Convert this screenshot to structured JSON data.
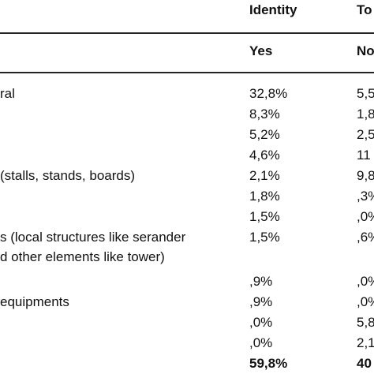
{
  "header": {
    "group1": "Identity",
    "group2": "To",
    "sub1": "Yes",
    "sub2": "No"
  },
  "rows": [
    {
      "label": "ral",
      "yes": "32,8%",
      "no": "5,5"
    },
    {
      "label": "",
      "yes": "8,3%",
      "no": "1,8"
    },
    {
      "label": "",
      "yes": "5,2%",
      "no": "2,5"
    },
    {
      "label": "",
      "yes": "4,6%",
      "no": "11"
    },
    {
      "label": "(stalls, stands, boards)",
      "yes": "2,1%",
      "no": "9,8"
    },
    {
      "label": "",
      "yes": "1,8%",
      "no": ",3%"
    },
    {
      "label": "",
      "yes": "1,5%",
      "no": ",0%"
    },
    {
      "label": "s (local structures like serander",
      "label2": "d other elements like tower)",
      "yes": "1,5%",
      "no": ",6%"
    },
    {
      "label": "",
      "yes": ",9%",
      "no": ",0%"
    },
    {
      "label": "equipments",
      "yes": ",9%",
      "no": ",0%"
    },
    {
      "label": "",
      "yes": ",0%",
      "no": "5,8"
    },
    {
      "label": "",
      "yes": ",0%",
      "no": "2,1"
    }
  ],
  "total": {
    "yes": "59,8%",
    "no": "40"
  }
}
